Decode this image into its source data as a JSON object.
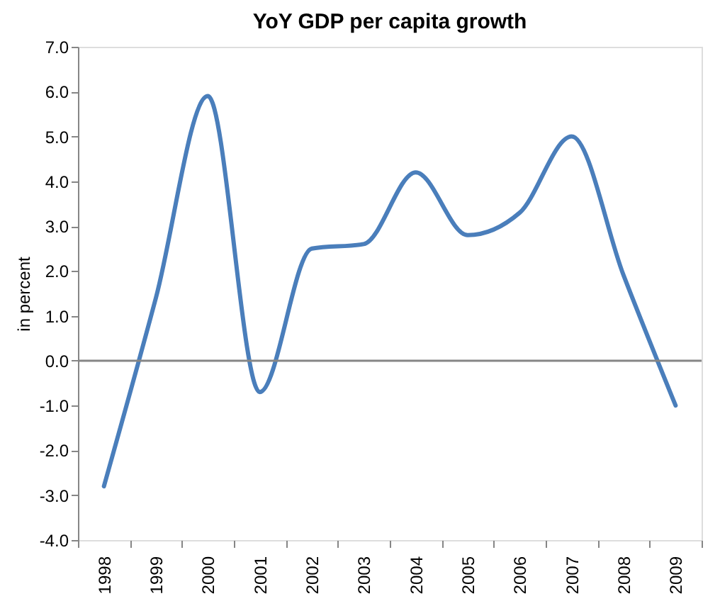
{
  "chart_data": {
    "type": "line",
    "title": "YoY GDP per capita growth",
    "ylabel": "in percent",
    "categories": [
      "1998",
      "1999",
      "2000",
      "2001",
      "2002",
      "2003",
      "2004",
      "2005",
      "2006",
      "2007",
      "2008",
      "2009"
    ],
    "series": [
      {
        "color": "#4a7ebb",
        "values": [
          -2.8,
          1.4,
          5.9,
          -0.7,
          2.5,
          2.6,
          4.2,
          2.8,
          3.3,
          5.0,
          1.9,
          -1.0
        ]
      }
    ],
    "ylim": [
      -4,
      7
    ],
    "yticks": [
      {
        "value": -4,
        "label": "-4.0"
      },
      {
        "value": -3,
        "label": "-3.0"
      },
      {
        "value": -2,
        "label": "-2.0"
      },
      {
        "value": -1,
        "label": "-1.0"
      },
      {
        "value": 0,
        "label": "0.0"
      },
      {
        "value": 1,
        "label": "1.0"
      },
      {
        "value": 2,
        "label": "2.0"
      },
      {
        "value": 3,
        "label": "3.0"
      },
      {
        "value": 4,
        "label": "4.0"
      },
      {
        "value": 5,
        "label": "5.0"
      },
      {
        "value": 6,
        "label": "6.0"
      },
      {
        "value": 7,
        "label": "7.0"
      }
    ],
    "ref_lines": [
      {
        "axis": "y",
        "value": 0,
        "color": "#868686"
      }
    ],
    "grid": false,
    "marker": "none",
    "line_style": "solid"
  }
}
